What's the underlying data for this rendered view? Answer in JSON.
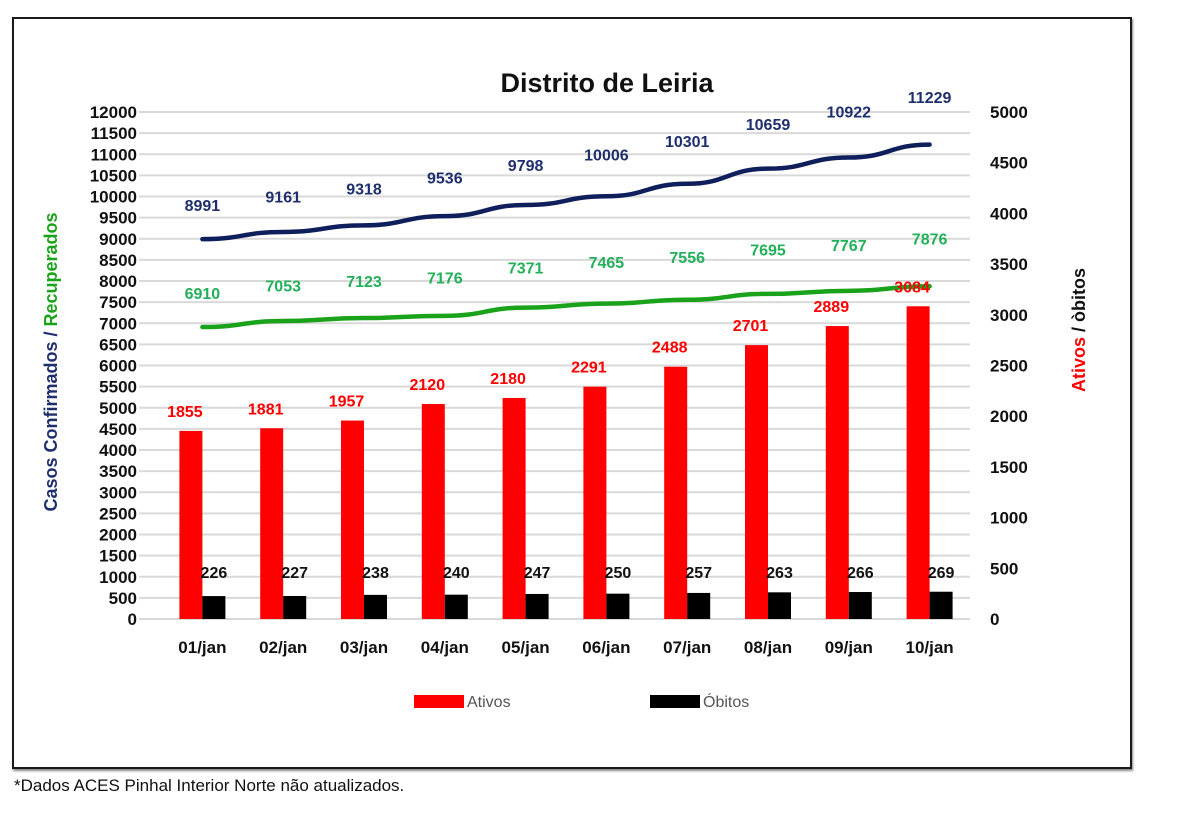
{
  "chart_data": {
    "type": "bar",
    "title": "Distrito de Leiria",
    "categories": [
      "01/jan",
      "02/jan",
      "03/jan",
      "04/jan",
      "05/jan",
      "06/jan",
      "07/jan",
      "08/jan",
      "09/jan",
      "10/jan"
    ],
    "series": [
      {
        "name": "Ativos",
        "type": "bar",
        "axis": "right",
        "color": "#ff0000",
        "label_color": "#ff0000",
        "values": [
          1855,
          1881,
          1957,
          2120,
          2180,
          2291,
          2488,
          2701,
          2889,
          3084
        ]
      },
      {
        "name": "Óbitos",
        "type": "bar",
        "axis": "right",
        "color": "#000000",
        "label_color": "#111111",
        "values": [
          226,
          227,
          238,
          240,
          247,
          250,
          257,
          263,
          266,
          269
        ]
      },
      {
        "name": "Casos Confirmados",
        "type": "line",
        "axis": "left",
        "color": "#0f1f5c",
        "label_color": "#1f2f6e",
        "values": [
          8991,
          9161,
          9318,
          9536,
          9798,
          10006,
          10301,
          10659,
          10922,
          11229
        ]
      },
      {
        "name": "Recuperados",
        "type": "line",
        "axis": "left",
        "color": "#1aa31a",
        "label_color": "#22b05a",
        "values": [
          6910,
          7053,
          7123,
          7176,
          7371,
          7465,
          7556,
          7695,
          7767,
          7876
        ]
      }
    ],
    "left_axis": {
      "title_parts": [
        {
          "text": "Casos Confirmados / ",
          "color": "#1f2f6e"
        },
        {
          "text": "Recuperados",
          "color": "#1aa31a"
        }
      ],
      "ylim": [
        0,
        12000
      ],
      "ticks": [
        0,
        500,
        1000,
        1500,
        2000,
        2500,
        3000,
        3500,
        4000,
        4500,
        5000,
        5500,
        6000,
        6500,
        7000,
        7500,
        8000,
        8500,
        9000,
        9500,
        10000,
        10500,
        11000,
        11500,
        12000
      ]
    },
    "right_axis": {
      "title_parts": [
        {
          "text": "Ativos",
          "color": "#ff0000"
        },
        {
          "text": " / òbitos",
          "color": "#111111"
        }
      ],
      "ylim": [
        0,
        5000
      ],
      "ticks": [
        0,
        500,
        1000,
        1500,
        2000,
        2500,
        3000,
        3500,
        4000,
        4500,
        5000
      ]
    },
    "grid": true,
    "legend": {
      "position": "bottom",
      "entries": [
        {
          "label": "Ativos",
          "color": "#ff0000"
        },
        {
          "label": "Óbitos",
          "color": "#000000"
        }
      ]
    }
  },
  "footnote": "*Dados ACES Pinhal Interior Norte não atualizados."
}
